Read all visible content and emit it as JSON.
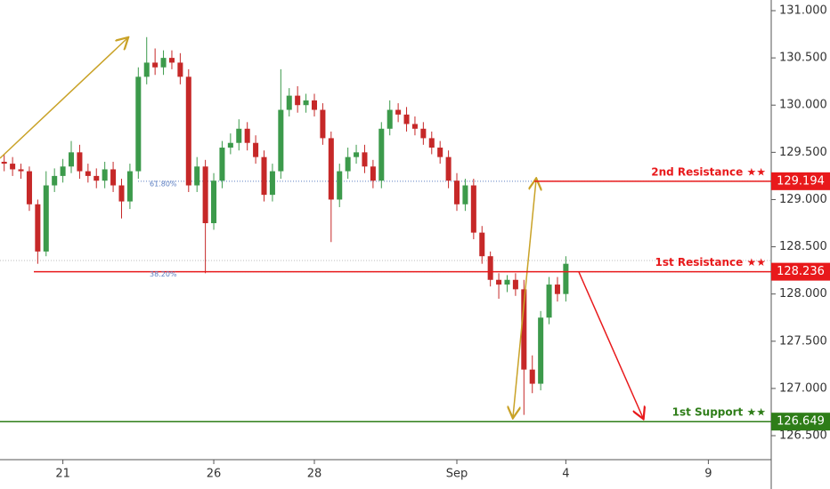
{
  "chart_data": {
    "type": "candlestick",
    "categories": [
      null,
      null,
      null,
      null,
      null,
      null,
      null,
      "21",
      null,
      null,
      null,
      null,
      null,
      null,
      null,
      null,
      null,
      null,
      null,
      null,
      null,
      null,
      null,
      null,
      null,
      "26",
      null,
      null,
      null,
      null,
      null,
      null,
      null,
      null,
      null,
      null,
      null,
      "28",
      null,
      null,
      null,
      null,
      null,
      null,
      null,
      null,
      null,
      null,
      null,
      null,
      null,
      null,
      null,
      null,
      "Sep",
      null,
      null,
      null,
      null,
      null,
      null,
      null,
      null,
      null,
      null,
      null,
      null,
      "4",
      null,
      null,
      null,
      null,
      null,
      null,
      null,
      null,
      null,
      null,
      null,
      null,
      null,
      null,
      null,
      null,
      "9",
      null,
      null,
      null,
      null,
      null,
      null,
      null
    ],
    "open": [
      129.4,
      129.38,
      129.32,
      129.3,
      128.95,
      128.45,
      129.15,
      129.25,
      129.35,
      129.5,
      129.3,
      129.25,
      129.2,
      129.32,
      129.15,
      128.98,
      129.3,
      130.3,
      130.45,
      130.4,
      130.5,
      130.45,
      130.3,
      129.15,
      129.35,
      128.75,
      129.2,
      129.55,
      129.6,
      129.75,
      129.6,
      129.45,
      129.05,
      129.3,
      129.95,
      130.1,
      130.0,
      130.05,
      129.95,
      129.65,
      129.0,
      129.3,
      129.45,
      129.5,
      129.35,
      129.2,
      129.75,
      129.95,
      129.9,
      129.8,
      129.75,
      129.65,
      129.55,
      129.45,
      129.2,
      128.95,
      129.15,
      128.65,
      128.4,
      128.15,
      128.1,
      128.15,
      128.05,
      127.2,
      127.05,
      127.75,
      128.1,
      128.0,
      null,
      null,
      null,
      null,
      null,
      null,
      null,
      null,
      null,
      null,
      null,
      null,
      null,
      null,
      null,
      null,
      null,
      null,
      null,
      null,
      null,
      null,
      null,
      null
    ],
    "high": [
      129.48,
      129.45,
      129.38,
      129.35,
      129.0,
      129.3,
      129.33,
      129.43,
      129.62,
      129.58,
      129.38,
      129.33,
      129.4,
      129.4,
      129.22,
      129.38,
      130.4,
      130.72,
      130.6,
      130.58,
      130.58,
      130.55,
      130.38,
      129.45,
      129.42,
      129.28,
      129.62,
      129.7,
      129.85,
      129.82,
      129.68,
      129.52,
      129.38,
      130.38,
      130.18,
      130.2,
      130.12,
      130.12,
      130.02,
      129.72,
      129.38,
      129.55,
      129.58,
      129.58,
      129.42,
      129.82,
      130.05,
      130.02,
      129.98,
      129.88,
      129.82,
      129.72,
      129.62,
      129.52,
      129.28,
      129.22,
      129.22,
      128.72,
      128.45,
      128.22,
      128.2,
      128.22,
      128.15,
      127.35,
      127.82,
      128.18,
      128.18,
      128.4,
      null,
      null,
      null,
      null,
      null,
      null,
      null,
      null,
      null,
      null,
      null,
      null,
      null,
      null,
      null,
      null,
      null,
      null,
      null,
      null,
      null,
      null,
      null,
      null
    ],
    "low": [
      129.3,
      129.25,
      129.22,
      128.88,
      128.32,
      128.4,
      129.08,
      129.18,
      129.28,
      129.22,
      129.18,
      129.12,
      129.12,
      129.08,
      128.8,
      128.9,
      129.22,
      130.22,
      130.32,
      130.32,
      130.38,
      130.22,
      129.08,
      129.08,
      128.22,
      128.68,
      129.12,
      129.48,
      129.52,
      129.52,
      129.38,
      128.98,
      128.98,
      129.22,
      129.88,
      129.92,
      129.92,
      129.88,
      129.58,
      128.55,
      128.92,
      129.22,
      129.38,
      129.28,
      129.12,
      129.12,
      129.68,
      129.82,
      129.72,
      129.68,
      129.58,
      129.48,
      129.38,
      129.12,
      128.88,
      128.88,
      128.58,
      128.32,
      128.08,
      127.95,
      128.02,
      127.98,
      126.72,
      126.95,
      126.98,
      127.68,
      127.92,
      127.92,
      null,
      null,
      null,
      null,
      null,
      null,
      null,
      null,
      null,
      null,
      null,
      null,
      null,
      null,
      null,
      null,
      null,
      null,
      null,
      null,
      null,
      null,
      null,
      null
    ],
    "close": [
      129.38,
      129.32,
      129.3,
      128.95,
      128.45,
      129.15,
      129.25,
      129.35,
      129.5,
      129.3,
      129.25,
      129.2,
      129.32,
      129.15,
      128.98,
      129.3,
      130.3,
      130.45,
      130.4,
      130.5,
      130.45,
      130.3,
      129.15,
      129.35,
      128.75,
      129.2,
      129.55,
      129.6,
      129.75,
      129.6,
      129.45,
      129.05,
      129.3,
      129.95,
      130.1,
      130.0,
      130.05,
      129.95,
      129.65,
      129.0,
      129.3,
      129.45,
      129.5,
      129.35,
      129.2,
      129.75,
      129.95,
      129.9,
      129.8,
      129.75,
      129.65,
      129.55,
      129.45,
      129.2,
      128.95,
      129.15,
      128.65,
      128.4,
      128.15,
      128.1,
      128.15,
      128.05,
      127.2,
      127.05,
      127.75,
      128.1,
      128.0,
      128.32,
      null,
      null,
      null,
      null,
      null,
      null,
      null,
      null,
      null,
      null,
      null,
      null,
      null,
      null,
      null,
      null,
      null,
      null,
      null,
      null,
      null,
      null,
      null,
      null
    ],
    "up_color": "#3c9a4b",
    "down_color": "#c62828",
    "ylim": [
      126.246,
      131.113
    ],
    "yticks": [
      {
        "value": 126.5,
        "label": "126.500"
      },
      {
        "value": 127,
        "label": "127.000"
      },
      {
        "value": 127.5,
        "label": "127.500"
      },
      {
        "value": 128,
        "label": "128.000"
      },
      {
        "value": 128.5,
        "label": "128.500"
      },
      {
        "value": 129,
        "label": "129.000"
      },
      {
        "value": 129.5,
        "label": "129.500"
      },
      {
        "value": 130,
        "label": "130.000"
      },
      {
        "value": 130.5,
        "label": "130.500"
      },
      {
        "value": 131,
        "label": "131.000"
      }
    ],
    "levels": [
      {
        "name": "2nd Resistance ★★",
        "value": 129.194,
        "value_label": "129.194",
        "color": "#e8191b"
      },
      {
        "name": "1st Resistance ★★",
        "value": 128.236,
        "value_label": "128.236",
        "color": "#e8191b"
      },
      {
        "name": "1st Support ★★",
        "value": 126.649,
        "value_label": "126.649",
        "color": "#2e7d18"
      }
    ],
    "fib_labels": [
      "61.80%",
      "38.20%"
    ]
  }
}
